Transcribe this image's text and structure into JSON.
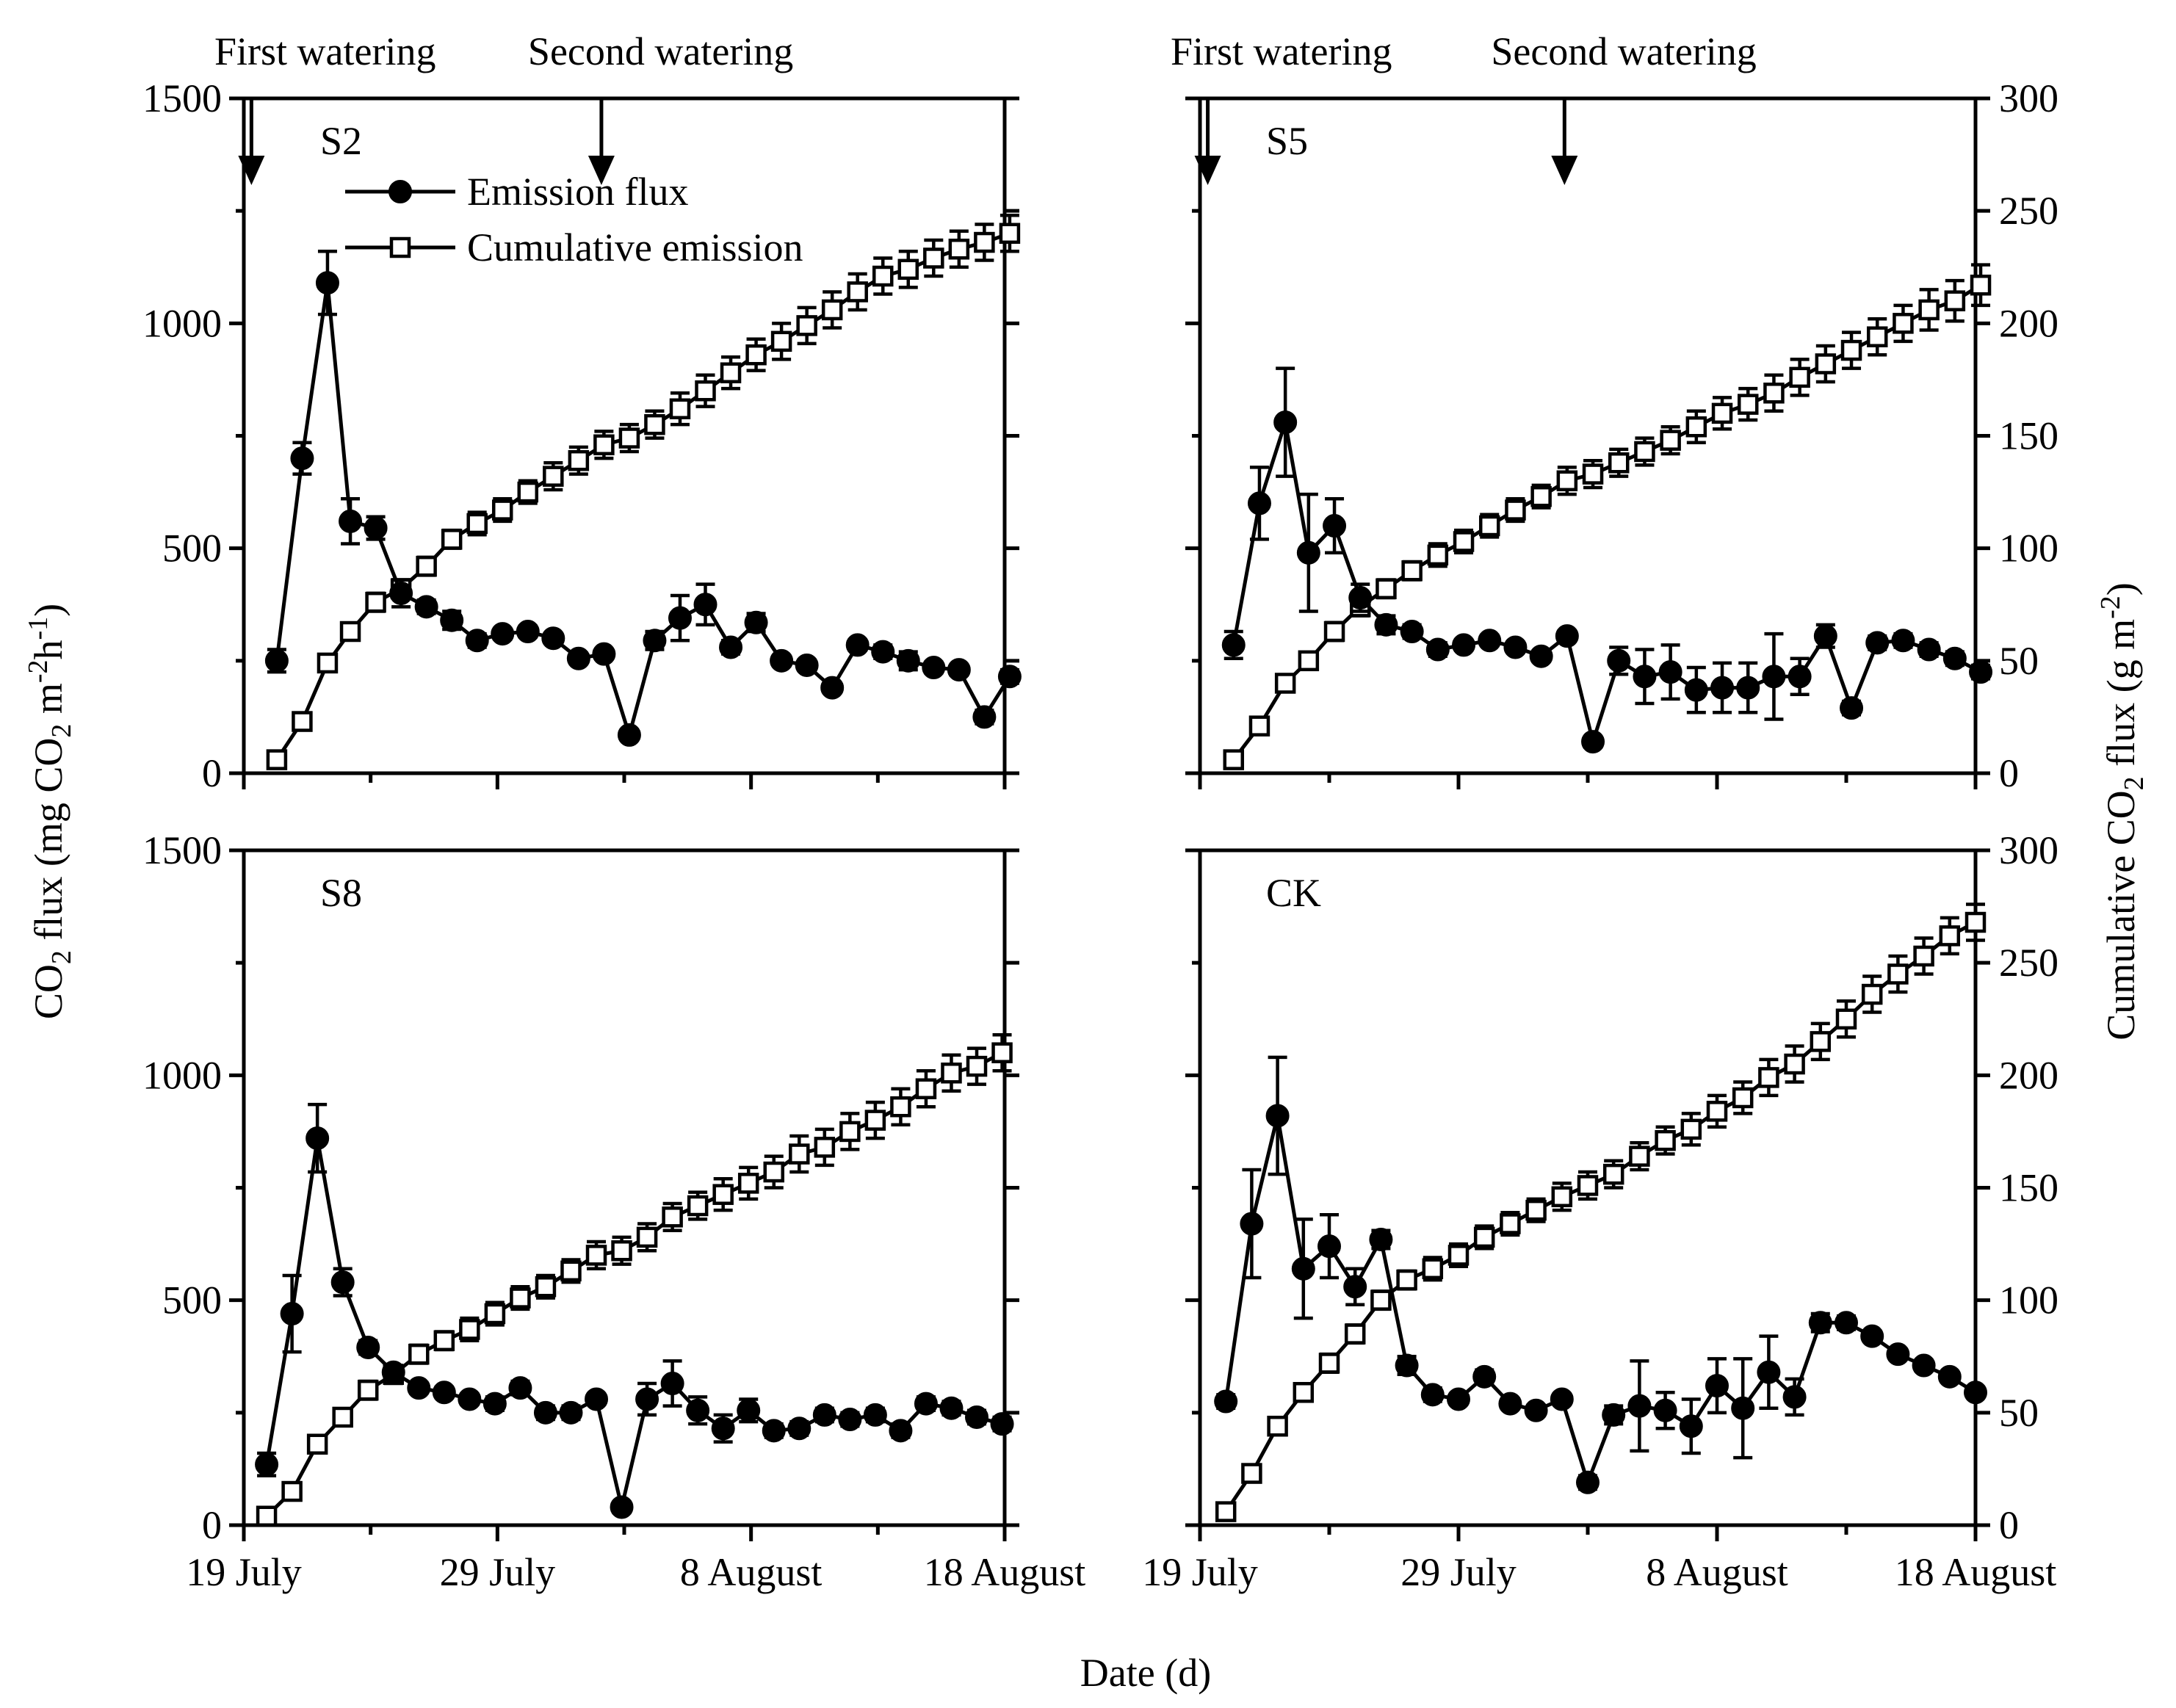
{
  "chart_data": {
    "type": "line",
    "layout": "2x2 panels",
    "xlabel": "Date (d)",
    "ylabel_left": "CO2 flux (mg CO2 m-2h-1)",
    "ylabel_right": "Cumulative CO2 flux (g m-2)",
    "xlim": [
      0,
      30
    ],
    "x_ticks": [
      {
        "day": 0,
        "label": "19 July"
      },
      {
        "day": 10,
        "label": "29 July"
      },
      {
        "day": 20,
        "label": "8 August"
      },
      {
        "day": 30,
        "label": "18 August"
      }
    ],
    "x_minor_ticks": [
      5,
      15,
      25
    ],
    "left_axis": {
      "ylim": [
        0,
        1500
      ],
      "ticks": [
        0,
        500,
        1000,
        1500
      ],
      "minor_ticks": [
        250,
        750,
        1250
      ]
    },
    "right_axis": {
      "ylim": [
        0,
        300
      ],
      "ticks": [
        0,
        50,
        100,
        150,
        200,
        250,
        300
      ]
    },
    "legend": {
      "position": "top-left of S2 panel",
      "flux_label": "Emission flux",
      "cum_label": "Cumulative emission"
    },
    "annotations": {
      "first_watering": "First watering",
      "second_watering": "Second watering",
      "first_watering_day": 0.3,
      "second_watering_day": 14.1
    },
    "panels": [
      {
        "name": "S2",
        "flux": {
          "x": [
            1.3,
            2.3,
            3.3,
            4.2,
            5.2,
            6.2,
            7.2,
            8.2,
            9.2,
            10.2,
            11.2,
            12.2,
            13.2,
            14.2,
            15.2,
            16.2,
            17.2,
            18.2,
            19.2,
            20.2,
            21.2,
            22.2,
            23.2,
            24.2,
            25.2,
            26.2,
            27.2,
            28.2,
            29.2,
            30.2
          ],
          "y": [
            250,
            700,
            1090,
            560,
            545,
            400,
            370,
            340,
            295,
            310,
            315,
            300,
            255,
            265,
            85,
            295,
            345,
            375,
            280,
            335,
            250,
            240,
            190,
            285,
            270,
            250,
            235,
            230,
            125,
            215
          ],
          "err": [
            25,
            35,
            70,
            50,
            25,
            30,
            15,
            20,
            15,
            12,
            12,
            10,
            12,
            10,
            12,
            20,
            50,
            45,
            15,
            20,
            12,
            12,
            10,
            12,
            15,
            20,
            12,
            12,
            15,
            15
          ]
        },
        "cumulative": {
          "x": [
            1.3,
            2.3,
            3.3,
            4.2,
            5.2,
            6.2,
            7.2,
            8.2,
            9.2,
            10.2,
            11.2,
            12.2,
            13.2,
            14.2,
            15.2,
            16.2,
            17.2,
            18.2,
            19.2,
            20.2,
            21.2,
            22.2,
            23.2,
            24.2,
            25.2,
            26.2,
            27.2,
            28.2,
            29.2,
            30.2
          ],
          "y": [
            6,
            23,
            49,
            63,
            76,
            82,
            92,
            104,
            111,
            117,
            125,
            132,
            139,
            146,
            149,
            155,
            162,
            170,
            178,
            186,
            192,
            199,
            206,
            214,
            221,
            224,
            229,
            233,
            236,
            240
          ],
          "err": [
            2,
            2,
            3,
            3,
            4,
            4,
            4,
            4,
            5,
            5,
            5,
            6,
            6,
            6,
            6,
            6,
            7,
            7,
            7,
            7,
            8,
            8,
            8,
            8,
            8,
            8,
            8,
            8,
            8,
            8
          ]
        }
      },
      {
        "name": "S5",
        "flux": {
          "x": [
            1.3,
            2.3,
            3.3,
            4.2,
            5.2,
            6.2,
            7.2,
            8.2,
            9.2,
            10.2,
            11.2,
            12.2,
            13.2,
            14.2,
            15.2,
            16.2,
            17.2,
            18.2,
            19.2,
            20.2,
            21.2,
            22.2,
            23.2,
            24.2,
            25.2,
            26.2,
            27.2,
            28.2,
            29.2,
            30.2
          ],
          "y": [
            285,
            600,
            780,
            490,
            550,
            390,
            330,
            315,
            275,
            285,
            295,
            280,
            260,
            305,
            70,
            250,
            215,
            225,
            185,
            190,
            190,
            215,
            215,
            305,
            145,
            290,
            295,
            275,
            255,
            225
          ],
          "err": [
            30,
            80,
            120,
            130,
            60,
            30,
            20,
            15,
            15,
            12,
            12,
            12,
            12,
            12,
            12,
            30,
            60,
            60,
            50,
            55,
            55,
            95,
            40,
            25,
            15,
            15,
            15,
            15,
            15,
            15
          ]
        },
        "cumulative": {
          "x": [
            1.3,
            2.3,
            3.3,
            4.2,
            5.2,
            6.2,
            7.2,
            8.2,
            9.2,
            10.2,
            11.2,
            12.2,
            13.2,
            14.2,
            15.2,
            16.2,
            17.2,
            18.2,
            19.2,
            20.2,
            21.2,
            22.2,
            23.2,
            24.2,
            25.2,
            26.2,
            27.2,
            28.2,
            29.2,
            30.2
          ],
          "y": [
            6,
            21,
            40,
            50,
            63,
            74,
            82,
            90,
            97,
            103,
            110,
            117,
            123,
            130,
            133,
            138,
            143,
            148,
            154,
            160,
            164,
            169,
            176,
            182,
            188,
            194,
            200,
            206,
            210,
            217
          ],
          "err": [
            2,
            2,
            3,
            3,
            4,
            4,
            4,
            4,
            5,
            5,
            5,
            5,
            5,
            6,
            6,
            6,
            6,
            6,
            7,
            7,
            7,
            8,
            8,
            8,
            8,
            8,
            8,
            9,
            9,
            9
          ]
        }
      },
      {
        "name": "S8",
        "flux": {
          "x": [
            0.9,
            1.9,
            2.9,
            3.9,
            4.9,
            5.9,
            6.9,
            7.9,
            8.9,
            9.9,
            10.9,
            11.9,
            12.9,
            13.9,
            14.9,
            15.9,
            16.9,
            17.9,
            18.9,
            19.9,
            20.9,
            21.9,
            22.9,
            23.9,
            24.9,
            25.9,
            26.9,
            27.9,
            28.9,
            29.9
          ],
          "y": [
            135,
            470,
            860,
            540,
            395,
            340,
            305,
            295,
            280,
            270,
            305,
            250,
            250,
            280,
            40,
            280,
            315,
            255,
            215,
            255,
            210,
            215,
            245,
            235,
            245,
            210,
            270,
            260,
            240,
            225
          ],
          "err": [
            25,
            85,
            75,
            30,
            15,
            15,
            12,
            12,
            12,
            15,
            15,
            15,
            15,
            12,
            12,
            35,
            50,
            30,
            30,
            25,
            15,
            15,
            15,
            15,
            15,
            15,
            15,
            15,
            15,
            15
          ]
        },
        "cumulative": {
          "x": [
            0.9,
            1.9,
            2.9,
            3.9,
            4.9,
            5.9,
            6.9,
            7.9,
            8.9,
            9.9,
            10.9,
            11.9,
            12.9,
            13.9,
            14.9,
            15.9,
            16.9,
            17.9,
            18.9,
            19.9,
            20.9,
            21.9,
            22.9,
            23.9,
            24.9,
            25.9,
            26.9,
            27.9,
            28.9,
            29.9
          ],
          "y": [
            4,
            15,
            36,
            48,
            60,
            67,
            76,
            82,
            87,
            94,
            101,
            106,
            113,
            120,
            122,
            128,
            137,
            142,
            147,
            152,
            157,
            165,
            168,
            175,
            180,
            186,
            194,
            201,
            204,
            210
          ],
          "err": [
            2,
            2,
            3,
            3,
            4,
            4,
            4,
            4,
            5,
            5,
            5,
            5,
            5,
            6,
            6,
            6,
            6,
            6,
            7,
            7,
            7,
            8,
            8,
            8,
            8,
            8,
            8,
            8,
            8,
            8
          ]
        }
      },
      {
        "name": "CK",
        "flux": {
          "x": [
            1.0,
            2.0,
            3.0,
            4.0,
            5.0,
            6.0,
            7.0,
            8.0,
            9.0,
            10.0,
            11.0,
            12.0,
            13.0,
            14.0,
            15.0,
            16.0,
            17.0,
            18.0,
            19.0,
            20.0,
            21.0,
            22.0,
            23.0,
            24.0,
            25.0,
            26.0,
            27.0,
            28.0,
            29.0,
            30.0
          ],
          "y": [
            275,
            670,
            910,
            570,
            620,
            530,
            635,
            355,
            290,
            280,
            330,
            270,
            255,
            280,
            95,
            245,
            265,
            255,
            220,
            310,
            260,
            340,
            285,
            450,
            450,
            420,
            380,
            355,
            330,
            295
          ],
          "err": [
            15,
            120,
            130,
            110,
            70,
            40,
            20,
            20,
            15,
            12,
            15,
            12,
            12,
            12,
            15,
            20,
            100,
            40,
            60,
            60,
            110,
            80,
            40,
            20,
            15,
            12,
            12,
            12,
            12,
            12
          ]
        },
        "cumulative": {
          "x": [
            1.0,
            2.0,
            3.0,
            4.0,
            5.0,
            6.0,
            7.0,
            8.0,
            9.0,
            10.0,
            11.0,
            12.0,
            13.0,
            14.0,
            15.0,
            16.0,
            17.0,
            18.0,
            19.0,
            20.0,
            21.0,
            22.0,
            23.0,
            24.0,
            25.0,
            26.0,
            27.0,
            28.0,
            29.0,
            30.0
          ],
          "y": [
            6,
            23,
            44,
            59,
            72,
            85,
            100,
            109,
            114,
            120,
            128,
            134,
            140,
            146,
            151,
            156,
            164,
            171,
            176,
            184,
            190,
            199,
            205,
            215,
            225,
            236,
            245,
            253,
            262,
            268
          ],
          "err": [
            2,
            2,
            3,
            3,
            4,
            4,
            4,
            4,
            5,
            5,
            5,
            5,
            5,
            6,
            6,
            6,
            6,
            6,
            7,
            7,
            7,
            8,
            8,
            8,
            8,
            8,
            8,
            8,
            8,
            8
          ]
        }
      }
    ]
  }
}
